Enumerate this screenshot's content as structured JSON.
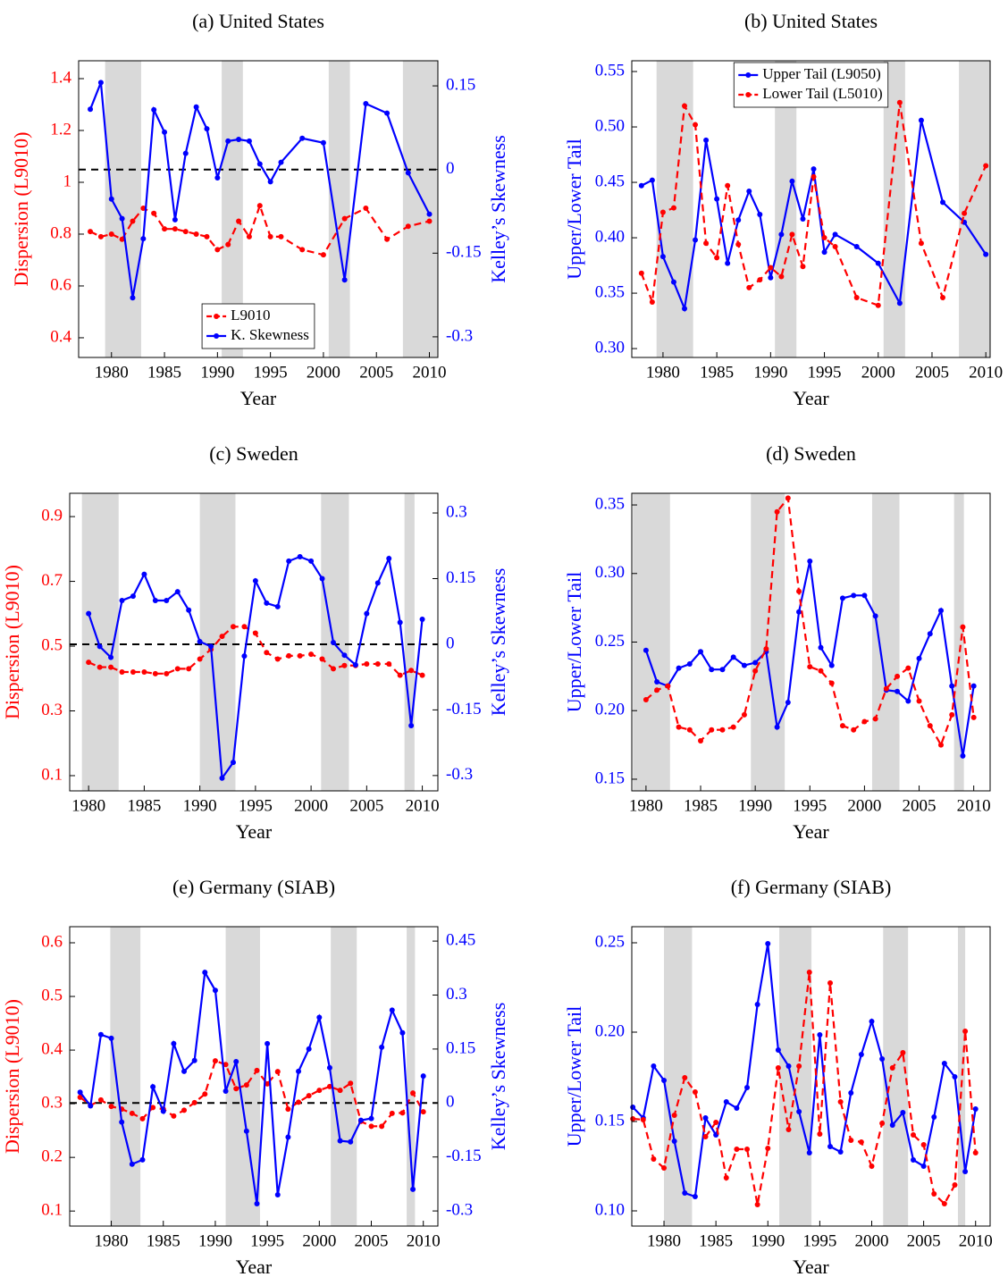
{
  "chart_data": [
    {
      "type": "line",
      "title": "(a) United States",
      "xlabel": "Year",
      "ylabel": "Dispersion (L9010)",
      "y2label": "Kelley’s Skewness",
      "xlim": [
        1976.9,
        2010.8
      ],
      "xticks": [
        1980,
        1985,
        1990,
        1995,
        2000,
        2005,
        2010
      ],
      "ylim": [
        0.324,
        1.469
      ],
      "yticks": [
        0.4,
        0.6,
        0.8,
        1,
        1.2,
        1.4
      ],
      "y2lim": [
        -0.337,
        0.195
      ],
      "y2ticks": [
        -0.3,
        -0.15,
        0,
        0.15
      ],
      "shaded": [
        [
          1979.4,
          1982.8
        ],
        [
          1990.4,
          1992.4
        ],
        [
          2000.5,
          2002.5
        ],
        [
          2007.5,
          2010.8
        ]
      ],
      "hline": {
        "value": 0,
        "axis": "y2"
      },
      "legend": "lower center",
      "x": [
        1978,
        1979,
        1980,
        1981,
        1982,
        1983,
        1984,
        1985,
        1986,
        1987,
        1988,
        1989,
        1990,
        1991,
        1992,
        1993,
        1994,
        1995,
        1996,
        1998,
        2000,
        2002,
        2004,
        2006,
        2008,
        2010
      ],
      "series": [
        {
          "name": "L9010",
          "color": "#ff0000",
          "linestyle": "dashed",
          "values": [
            0.81,
            0.79,
            0.8,
            0.78,
            0.85,
            0.9,
            0.88,
            0.82,
            0.82,
            0.81,
            0.8,
            0.79,
            0.74,
            0.76,
            0.85,
            0.79,
            0.91,
            0.79,
            0.79,
            0.74,
            0.72,
            0.86,
            0.9,
            0.78,
            0.83,
            0.85
          ]
        },
        {
          "name": "K. Skewness",
          "color": "#0000ff",
          "linestyle": "solid",
          "axis": "y2",
          "values": [
            0.108,
            0.156,
            -0.053,
            -0.088,
            -0.23,
            -0.124,
            0.107,
            0.067,
            -0.09,
            0.029,
            0.112,
            0.073,
            -0.015,
            0.051,
            0.054,
            0.051,
            0.01,
            -0.022,
            0.013,
            0.056,
            0.048,
            -0.198,
            0.118,
            0.101,
            -0.006,
            -0.08
          ]
        }
      ]
    },
    {
      "type": "line",
      "title": "(b) United States",
      "xlabel": "Year",
      "ylabel": "Upper/Lower Tail",
      "xlim": [
        1977.1,
        2010.4
      ],
      "xticks": [
        1980,
        1985,
        1990,
        1995,
        2000,
        2005,
        2010
      ],
      "ylim": [
        0.292,
        0.5597
      ],
      "yticks": [
        {
          "value": 0.3,
          "label": "0.30"
        },
        0.35,
        {
          "value": 0.4,
          "label": "0.40"
        },
        0.45,
        {
          "value": 0.5,
          "label": "0.50"
        },
        0.55
      ],
      "shaded": [
        [
          1979.4,
          1982.8
        ],
        [
          1990.4,
          1992.4
        ],
        [
          2000.5,
          2002.5
        ],
        [
          2007.5,
          2010.4
        ]
      ],
      "legend": "upper center",
      "x": [
        1978,
        1979,
        1980,
        1981,
        1982,
        1983,
        1984,
        1985,
        1986,
        1987,
        1988,
        1989,
        1990,
        1991,
        1992,
        1993,
        1994,
        1995,
        1996,
        1998,
        2000,
        2002,
        2004,
        2006,
        2008,
        2010
      ],
      "series": [
        {
          "name": "Upper Tail (L9050)",
          "color": "#0000ff",
          "linestyle": "solid",
          "values": [
            0.447,
            0.452,
            0.383,
            0.36,
            0.336,
            0.398,
            0.488,
            0.435,
            0.377,
            0.416,
            0.442,
            0.421,
            0.364,
            0.403,
            0.451,
            0.417,
            0.462,
            0.387,
            0.403,
            0.392,
            0.377,
            0.341,
            0.506,
            0.432,
            0.414,
            0.385
          ]
        },
        {
          "name": "Lower Tail (L5010)",
          "color": "#ff0000",
          "linestyle": "dashed",
          "values": [
            0.368,
            0.342,
            0.423,
            0.427,
            0.519,
            0.502,
            0.395,
            0.382,
            0.447,
            0.394,
            0.355,
            0.362,
            0.373,
            0.365,
            0.403,
            0.374,
            0.455,
            0.4,
            0.392,
            0.346,
            0.339,
            0.522,
            0.395,
            0.346,
            0.422,
            0.465
          ]
        }
      ]
    },
    {
      "type": "line",
      "title": "(c) Sweden",
      "xlabel": "Year",
      "ylabel": "Dispersion (L9010)",
      "y2label": "Kelley’s Skewness",
      "xlim": [
        1978.3,
        2011.4
      ],
      "xticks": [
        1980,
        1985,
        1990,
        1995,
        2000,
        2005,
        2010
      ],
      "ylim": [
        0.053,
        0.972
      ],
      "yticks": [
        0.1,
        0.3,
        0.5,
        0.7,
        0.9
      ],
      "y2lim": [
        -0.335,
        0.345
      ],
      "y2ticks": [
        -0.3,
        -0.15,
        0,
        0.15,
        0.3
      ],
      "shaded": [
        [
          1979.4,
          1982.7
        ],
        [
          1990.0,
          1993.2
        ],
        [
          2000.9,
          2003.4
        ],
        [
          2008.4,
          2009.3
        ]
      ],
      "hline": {
        "value": 0,
        "axis": "y2"
      },
      "x": [
        1980,
        1981,
        1982,
        1983,
        1984,
        1985,
        1986,
        1987,
        1988,
        1989,
        1990,
        1991,
        1992,
        1993,
        1994,
        1995,
        1996,
        1997,
        1998,
        1999,
        2000,
        2001,
        2002,
        2003,
        2004,
        2005,
        2006,
        2007,
        2008,
        2009,
        2010
      ],
      "series": [
        {
          "color": "#ff0000",
          "linestyle": "dashed",
          "values": [
            0.45,
            0.435,
            0.435,
            0.42,
            0.42,
            0.42,
            0.415,
            0.415,
            0.43,
            0.43,
            0.46,
            0.49,
            0.53,
            0.56,
            0.56,
            0.54,
            0.48,
            0.46,
            0.47,
            0.47,
            0.475,
            0.46,
            0.43,
            0.44,
            0.44,
            0.445,
            0.445,
            0.445,
            0.41,
            0.425,
            0.41
          ]
        },
        {
          "color": "#0000ff",
          "linestyle": "solid",
          "axis": "y2",
          "values": [
            0.07,
            -0.005,
            -0.03,
            0.1,
            0.11,
            0.16,
            0.1,
            0.1,
            0.12,
            0.078,
            0.006,
            -0.005,
            -0.306,
            -0.27,
            -0.027,
            0.145,
            0.094,
            0.086,
            0.19,
            0.2,
            0.19,
            0.15,
            0.004,
            -0.025,
            -0.047,
            0.07,
            0.14,
            0.196,
            0.05,
            -0.186,
            0.057
          ]
        }
      ]
    },
    {
      "type": "line",
      "title": "(d) Sweden",
      "xlabel": "Year",
      "ylabel": "Upper/Lower Tail",
      "xlim": [
        1978.7,
        2011.5
      ],
      "xticks": [
        1980,
        1985,
        1990,
        1995,
        2000,
        2005,
        2010
      ],
      "ylim": [
        0.1415,
        0.3585
      ],
      "yticks": [
        0.15,
        {
          "value": 0.2,
          "label": "0.20"
        },
        0.25,
        {
          "value": 0.3,
          "label": "0.30"
        },
        0.35
      ],
      "shaded": [
        [
          1978.8,
          1982.2
        ],
        [
          1989.6,
          1992.7
        ],
        [
          2000.7,
          2003.2
        ],
        [
          2008.2,
          2009.1
        ]
      ],
      "x": [
        1980,
        1981,
        1982,
        1983,
        1984,
        1985,
        1986,
        1987,
        1988,
        1989,
        1990,
        1991,
        1992,
        1993,
        1994,
        1995,
        1996,
        1997,
        1998,
        1999,
        2000,
        2001,
        2002,
        2003,
        2004,
        2005,
        2006,
        2007,
        2008,
        2009,
        2010
      ],
      "series": [
        {
          "color": "#0000ff",
          "linestyle": "solid",
          "values": [
            0.244,
            0.221,
            0.218,
            0.231,
            0.234,
            0.243,
            0.23,
            0.23,
            0.239,
            0.233,
            0.235,
            0.243,
            0.188,
            0.206,
            0.272,
            0.309,
            0.246,
            0.233,
            0.282,
            0.284,
            0.284,
            0.269,
            0.215,
            0.214,
            0.207,
            0.238,
            0.256,
            0.273,
            0.218,
            0.167,
            0.218
          ]
        },
        {
          "color": "#ff0000",
          "linestyle": "dashed",
          "values": [
            0.208,
            0.215,
            0.218,
            0.188,
            0.186,
            0.178,
            0.186,
            0.186,
            0.188,
            0.197,
            0.229,
            0.245,
            0.345,
            0.355,
            0.287,
            0.232,
            0.229,
            0.22,
            0.189,
            0.186,
            0.192,
            0.194,
            0.216,
            0.225,
            0.231,
            0.207,
            0.189,
            0.175,
            0.197,
            0.261,
            0.195
          ]
        }
      ]
    },
    {
      "type": "line",
      "title": "(e) Germany (SIAB)",
      "xlabel": "Year",
      "ylabel": "Dispersion (L9010)",
      "y2label": "Kelley’s Skewness",
      "xlim": [
        1976.0,
        2011.4
      ],
      "xticks": [
        1980,
        1985,
        1990,
        1995,
        2000,
        2005,
        2010
      ],
      "ylim": [
        0.072,
        0.63
      ],
      "yticks": [
        0.1,
        0.2,
        0.3,
        0.4,
        0.5,
        0.6
      ],
      "y2lim": [
        -0.342,
        0.49
      ],
      "y2ticks": [
        -0.3,
        -0.15,
        0,
        0.15,
        0.3,
        0.45
      ],
      "shaded": [
        [
          1979.9,
          1982.8
        ],
        [
          1991.0,
          1994.3
        ],
        [
          2001.1,
          2003.6
        ],
        [
          2008.4,
          2009.2
        ]
      ],
      "hline": {
        "value": 0,
        "axis": "y2"
      },
      "x": [
        1977,
        1978,
        1979,
        1980,
        1981,
        1982,
        1983,
        1984,
        1985,
        1986,
        1987,
        1988,
        1989,
        1990,
        1991,
        1992,
        1993,
        1994,
        1995,
        1996,
        1997,
        1998,
        1999,
        2000,
        2001,
        2002,
        2003,
        2004,
        2005,
        2006,
        2007,
        2008,
        2009,
        2010
      ],
      "series": [
        {
          "color": "#ff0000",
          "linestyle": "dashed",
          "values": [
            0.312,
            0.297,
            0.307,
            0.295,
            0.29,
            0.282,
            0.272,
            0.293,
            0.29,
            0.277,
            0.288,
            0.302,
            0.318,
            0.38,
            0.373,
            0.328,
            0.335,
            0.362,
            0.337,
            0.36,
            0.29,
            0.303,
            0.315,
            0.325,
            0.332,
            0.325,
            0.338,
            0.267,
            0.258,
            0.258,
            0.282,
            0.283,
            0.32,
            0.285
          ]
        },
        {
          "color": "#0000ff",
          "linestyle": "solid",
          "axis": "y2",
          "values": [
            0.03,
            -0.008,
            0.19,
            0.18,
            -0.053,
            -0.17,
            -0.158,
            0.045,
            -0.023,
            0.165,
            0.088,
            0.118,
            0.363,
            0.313,
            0.033,
            0.115,
            -0.078,
            -0.28,
            0.165,
            -0.255,
            -0.095,
            0.088,
            0.15,
            0.238,
            0.098,
            -0.105,
            -0.108,
            -0.048,
            -0.043,
            0.155,
            0.258,
            0.195,
            -0.24,
            0.075
          ]
        }
      ]
    },
    {
      "type": "line",
      "title": "(f) Germany (SIAB)",
      "xlabel": "Year",
      "ylabel": "Upper/Lower Tail",
      "xlim": [
        1976.9,
        2011.4
      ],
      "xticks": [
        1980,
        1985,
        1990,
        1995,
        2000,
        2005,
        2010
      ],
      "ylim": [
        0.0915,
        0.259
      ],
      "yticks": [
        {
          "value": 0.1,
          "label": "0.10"
        },
        0.15,
        {
          "value": 0.2,
          "label": "0.20"
        },
        0.25
      ],
      "shaded": [
        [
          1980.0,
          1982.7
        ],
        [
          1991.1,
          1994.2
        ],
        [
          2001.1,
          2003.5
        ],
        [
          2008.3,
          2009.0
        ]
      ],
      "x": [
        1977,
        1978,
        1979,
        1980,
        1981,
        1982,
        1983,
        1984,
        1985,
        1986,
        1987,
        1988,
        1989,
        1990,
        1991,
        1992,
        1993,
        1994,
        1995,
        1996,
        1997,
        1998,
        1999,
        2000,
        2001,
        2002,
        2003,
        2004,
        2005,
        2006,
        2007,
        2008,
        2009,
        2010
      ],
      "series": [
        {
          "color": "#0000ff",
          "linestyle": "solid",
          "values": [
            0.158,
            0.152,
            0.181,
            0.173,
            0.139,
            0.11,
            0.108,
            0.152,
            0.1425,
            0.161,
            0.1575,
            0.169,
            0.2155,
            0.2495,
            0.19,
            0.181,
            0.1555,
            0.1325,
            0.1985,
            0.136,
            0.133,
            0.166,
            0.1875,
            0.206,
            0.185,
            0.148,
            0.155,
            0.1285,
            0.125,
            0.1525,
            0.1825,
            0.175,
            0.122,
            0.157
          ]
        },
        {
          "color": "#ff0000",
          "linestyle": "dashed",
          "values": [
            0.1515,
            0.151,
            0.129,
            0.124,
            0.1535,
            0.1745,
            0.1665,
            0.1415,
            0.1495,
            0.1185,
            0.1345,
            0.1345,
            0.1035,
            0.135,
            0.18,
            0.1455,
            0.181,
            0.2335,
            0.143,
            0.2275,
            0.161,
            0.1395,
            0.1385,
            0.125,
            0.149,
            0.18,
            0.1885,
            0.1425,
            0.137,
            0.1095,
            0.104,
            0.1145,
            0.2005,
            0.1325
          ]
        }
      ]
    }
  ]
}
